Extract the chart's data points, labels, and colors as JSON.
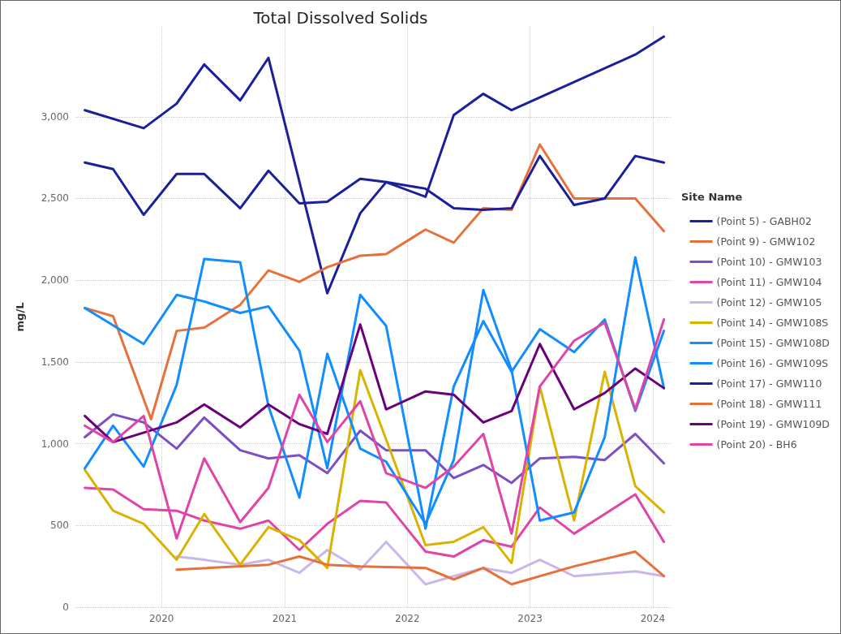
{
  "chart_data": {
    "type": "line",
    "title": "Total Dissolved Solids",
    "ylabel": "mg/L",
    "legend_title": "Site Name",
    "legend": "right",
    "grid": true,
    "marker": "none",
    "xlim": [
      "2019-04-20",
      "2024-02-28"
    ],
    "xticks": [
      "2020",
      "2021",
      "2022",
      "2023",
      "2024"
    ],
    "ylim": [
      0,
      3550
    ],
    "yticks": [
      0,
      {
        "value": 500,
        "label": "500"
      },
      {
        "value": 1000,
        "label": "1,000"
      },
      {
        "value": 1500,
        "label": "1,500"
      },
      {
        "value": 2000,
        "label": "2,000"
      },
      {
        "value": 2500,
        "label": "2,500"
      },
      {
        "value": 3000,
        "label": "3,000"
      }
    ],
    "series": [
      {
        "name": "(Point 5) - GABH02",
        "color": "#1a1f9c",
        "x": [
          "2019-05-18",
          "2019-11-09",
          "2020-02-15",
          "2020-05-07",
          "2020-08-22",
          "2020-11-14",
          "2021-05-08",
          "2021-08-14",
          "2021-10-30",
          "2022-02-24",
          "2022-05-19",
          "2022-08-15",
          "2022-11-07",
          "2023-11-10",
          "2024-02-03"
        ],
        "values": [
          3040,
          2930,
          3080,
          3320,
          3100,
          3360,
          1920,
          2410,
          2600,
          2510,
          3010,
          3140,
          3040,
          3380,
          3490
        ]
      },
      {
        "name": "(Point 9) - GMW102",
        "color": "#e8703a",
        "x": [
          "2019-05-18",
          "2019-08-10",
          "2019-12-01",
          "2020-02-15",
          "2020-05-07",
          "2020-08-22",
          "2020-11-14",
          "2021-02-14",
          "2021-05-08",
          "2021-08-14",
          "2021-10-30",
          "2022-02-24",
          "2022-05-19",
          "2022-08-15",
          "2022-11-07",
          "2023-01-30",
          "2023-05-12",
          "2023-08-11",
          "2023-11-10",
          "2024-02-03"
        ],
        "values": [
          1830,
          1780,
          1150,
          1690,
          1710,
          1850,
          2060,
          1990,
          2080,
          2150,
          2160,
          2310,
          2230,
          2440,
          2430,
          2830,
          2500,
          2500,
          2500,
          2300
        ]
      },
      {
        "name": "(Point 10) - GMW103",
        "color": "#7c4fc4",
        "x": [
          "2019-05-18",
          "2019-08-10",
          "2019-11-09",
          "2020-02-15",
          "2020-05-07",
          "2020-08-22",
          "2020-11-14",
          "2021-02-14",
          "2021-05-08",
          "2021-08-14",
          "2021-10-30",
          "2022-02-24",
          "2022-05-19",
          "2022-08-15",
          "2022-11-07",
          "2023-01-30",
          "2023-05-12",
          "2023-08-11",
          "2023-11-10",
          "2024-02-03"
        ],
        "values": [
          1040,
          1180,
          1130,
          970,
          1160,
          960,
          910,
          930,
          820,
          1080,
          960,
          960,
          790,
          870,
          760,
          910,
          920,
          900,
          1060,
          880
        ]
      },
      {
        "name": "(Point 11) - GMW104",
        "color": "#e044a7",
        "x": [
          "2019-05-18",
          "2019-08-10",
          "2019-11-09",
          "2020-02-15",
          "2020-05-07",
          "2020-08-22",
          "2020-11-14",
          "2021-02-14",
          "2021-05-08",
          "2021-08-14",
          "2021-10-30",
          "2022-02-24",
          "2022-05-19",
          "2022-08-15",
          "2022-11-07",
          "2023-01-30",
          "2023-05-12",
          "2023-11-10",
          "2024-02-03"
        ],
        "values": [
          730,
          720,
          600,
          590,
          530,
          480,
          530,
          350,
          510,
          650,
          640,
          340,
          310,
          410,
          370,
          610,
          450,
          690,
          400
        ]
      },
      {
        "name": "(Point 12) - GMW105",
        "color": "#c9b6ea",
        "x": [
          "2020-02-15",
          "2020-05-07",
          "2020-08-22",
          "2020-11-14",
          "2021-02-14",
          "2021-05-08",
          "2021-08-14",
          "2021-10-30",
          "2022-02-24",
          "2022-05-19",
          "2022-08-15",
          "2022-11-07",
          "2023-01-30",
          "2023-05-12",
          "2023-11-10",
          "2024-02-03"
        ],
        "values": [
          310,
          290,
          260,
          290,
          210,
          350,
          230,
          400,
          140,
          190,
          240,
          210,
          290,
          190,
          220,
          190
        ]
      },
      {
        "name": "(Point 14) - GMW108S",
        "color": "#d9b300",
        "x": [
          "2019-05-18",
          "2019-08-10",
          "2019-11-09",
          "2020-02-15",
          "2020-05-07",
          "2020-08-22",
          "2020-11-14",
          "2021-02-14",
          "2021-05-08",
          "2021-08-14",
          "2022-02-24",
          "2022-05-19",
          "2022-08-15",
          "2022-11-07",
          "2023-01-30",
          "2023-05-12",
          "2023-08-11",
          "2023-11-10",
          "2024-02-03"
        ],
        "values": [
          840,
          590,
          510,
          290,
          570,
          260,
          490,
          410,
          240,
          1450,
          380,
          400,
          490,
          270,
          1350,
          530,
          1440,
          740,
          580
        ]
      },
      {
        "name": "(Point 15) - GMW108D",
        "color": "#118dff",
        "x": [
          "2019-05-18",
          "2019-11-09",
          "2020-02-15",
          "2020-05-07",
          "2020-08-22",
          "2020-11-14",
          "2021-02-14",
          "2021-05-08",
          "2021-08-14",
          "2021-10-30",
          "2022-02-24",
          "2022-05-19",
          "2022-08-15",
          "2022-11-07",
          "2023-01-30",
          "2023-05-12",
          "2023-08-11",
          "2023-11-10",
          "2024-02-03"
        ],
        "values": [
          1830,
          1610,
          1910,
          1870,
          1800,
          1840,
          1570,
          850,
          1910,
          1720,
          480,
          1350,
          1750,
          1440,
          1700,
          1560,
          1760,
          1200,
          1690
        ]
      },
      {
        "name": "(Point 16) - GMW109S",
        "color": "#118dff",
        "x": [
          "2019-05-18",
          "2019-08-10",
          "2019-11-09",
          "2020-02-15",
          "2020-05-07",
          "2020-08-22",
          "2020-11-14",
          "2021-02-14",
          "2021-05-08",
          "2021-08-14",
          "2021-10-30",
          "2022-02-24",
          "2022-05-19",
          "2022-08-15",
          "2022-11-07",
          "2023-01-30",
          "2023-05-12",
          "2023-08-11",
          "2023-11-10",
          "2024-02-03"
        ],
        "values": [
          850,
          1110,
          860,
          1360,
          2130,
          2110,
          1230,
          670,
          1550,
          970,
          890,
          510,
          900,
          1940,
          1450,
          530,
          580,
          1040,
          2140,
          1340
        ]
      },
      {
        "name": "(Point 17) - GMW110",
        "color": "#1a1f9c",
        "x": [
          "2019-05-18",
          "2019-08-10",
          "2019-11-09",
          "2020-02-15",
          "2020-05-07",
          "2020-08-22",
          "2020-11-14",
          "2021-02-14",
          "2021-05-08",
          "2021-08-14",
          "2021-10-30",
          "2022-02-24",
          "2022-05-19",
          "2022-08-15",
          "2022-11-07",
          "2023-01-30",
          "2023-05-12",
          "2023-08-11",
          "2023-11-10",
          "2024-02-03"
        ],
        "values": [
          2720,
          2680,
          2400,
          2650,
          2650,
          2440,
          2670,
          2470,
          2480,
          2620,
          2600,
          2560,
          2440,
          2430,
          2440,
          2760,
          2460,
          2500,
          2760,
          2720
        ]
      },
      {
        "name": "(Point 18) - GMW111",
        "color": "#e8703a",
        "x": [
          "2020-02-15",
          "2020-11-14",
          "2021-02-14",
          "2021-05-08",
          "2021-08-14",
          "2022-02-24",
          "2022-05-19",
          "2022-08-15",
          "2022-11-07",
          "2023-05-12",
          "2023-11-10",
          "2024-02-03"
        ],
        "values": [
          230,
          260,
          310,
          260,
          250,
          240,
          170,
          240,
          140,
          250,
          340,
          190
        ]
      },
      {
        "name": "(Point 19) - GMW109D",
        "color": "#6b007b",
        "x": [
          "2019-05-18",
          "2019-08-10",
          "2020-02-15",
          "2020-05-07",
          "2020-08-22",
          "2020-11-14",
          "2021-02-14",
          "2021-05-08",
          "2021-08-14",
          "2021-10-30",
          "2022-02-24",
          "2022-05-19",
          "2022-08-15",
          "2022-11-07",
          "2023-01-30",
          "2023-05-12",
          "2023-08-11",
          "2023-11-10",
          "2024-02-03"
        ],
        "values": [
          1170,
          1010,
          1130,
          1240,
          1100,
          1240,
          1120,
          1060,
          1730,
          1210,
          1320,
          1300,
          1130,
          1200,
          1610,
          1210,
          1310,
          1460,
          1340
        ]
      },
      {
        "name": "(Point 20) - BH6",
        "color": "#e044a7",
        "x": [
          "2019-05-18",
          "2019-08-10",
          "2019-11-09",
          "2020-02-15",
          "2020-05-07",
          "2020-08-22",
          "2020-11-14",
          "2021-02-14",
          "2021-05-08",
          "2021-08-14",
          "2021-10-30",
          "2022-02-24",
          "2022-05-19",
          "2022-08-15",
          "2022-11-07",
          "2023-01-30",
          "2023-05-12",
          "2023-08-11",
          "2023-11-10",
          "2024-02-03"
        ],
        "values": [
          1110,
          1010,
          1170,
          420,
          910,
          520,
          730,
          1300,
          1010,
          1260,
          820,
          730,
          860,
          1060,
          450,
          1350,
          1630,
          1740,
          1210,
          1760
        ]
      }
    ]
  }
}
